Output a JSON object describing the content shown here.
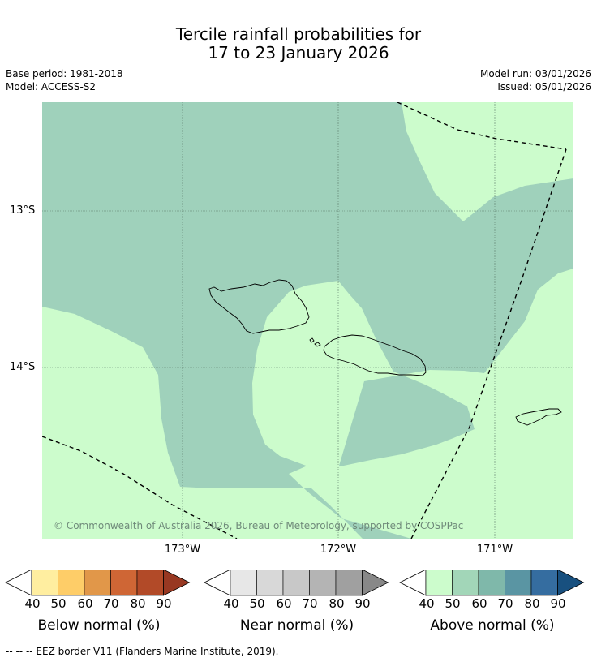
{
  "title": {
    "line1": "Tercile rainfall probabilities for",
    "line2": "17 to 23 January 2026"
  },
  "meta": {
    "base_period": "Base period: 1981-2018",
    "model": "Model: ACCESS-S2",
    "model_run": "Model run: 03/01/2026",
    "issued": "Issued: 05/01/2026"
  },
  "map": {
    "lat_labels": [
      "13°S",
      "14°S"
    ],
    "lon_labels": [
      "173°W",
      "172°W",
      "171°W"
    ],
    "copyright": "© Commonwealth of Australia 2026, Bureau of Meteorology, supported by COSPPac",
    "region_classes": {
      "background": "Above normal 40-50%",
      "main": "Above normal 50-60%"
    },
    "colors": {
      "above_40_50": "#ccfccc",
      "above_50_60": "#9fd1bb",
      "grid": "#5a7a6a",
      "coast": "#000000",
      "eez": "#000000"
    }
  },
  "legends": [
    {
      "title": "Below normal (%)",
      "ticks": [
        "40",
        "50",
        "60",
        "70",
        "80",
        "90"
      ],
      "colors": [
        "#ffeea0",
        "#fecd68",
        "#e19749",
        "#cf6635",
        "#b24a28",
        "#983822"
      ]
    },
    {
      "title": "Near normal (%)",
      "ticks": [
        "40",
        "50",
        "60",
        "70",
        "80",
        "90"
      ],
      "colors": [
        "#e7e7e7",
        "#d8d8d8",
        "#c8c8c8",
        "#b4b4b4",
        "#a0a0a0",
        "#888888"
      ]
    },
    {
      "title": "Above normal (%)",
      "ticks": [
        "40",
        "50",
        "60",
        "70",
        "80",
        "90"
      ],
      "colors": [
        "#ccfccc",
        "#a2d6b8",
        "#7fb8aa",
        "#5a95a3",
        "#356da0",
        "#18507f"
      ]
    }
  ],
  "footnote": "--  --  -- EEZ border V11 (Flanders Marine Institute, 2019)."
}
